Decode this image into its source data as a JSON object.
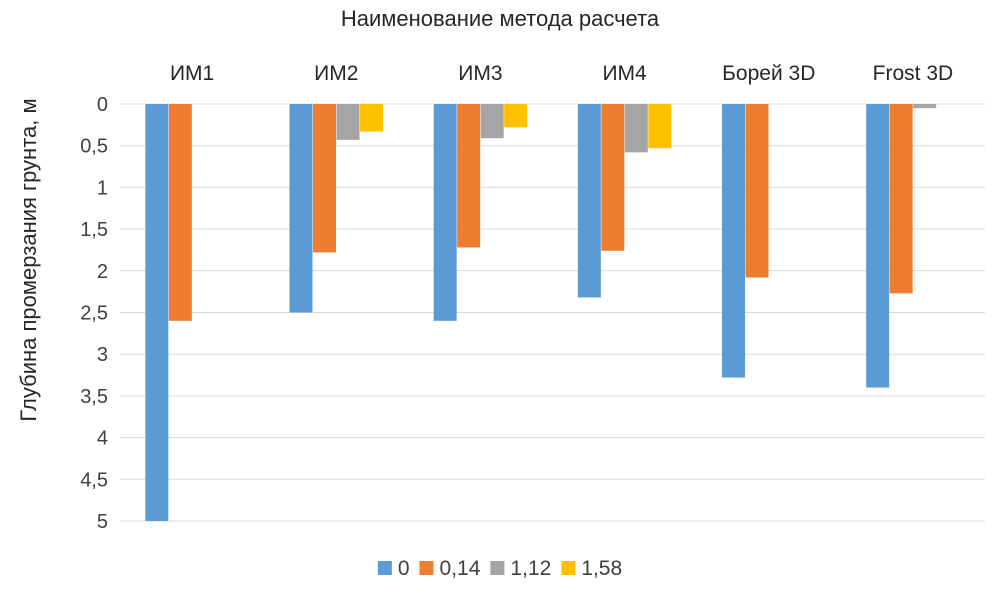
{
  "chart_data": {
    "type": "bar",
    "title": "Наименование метода расчета",
    "xlabel": "",
    "ylabel": "Глубина промерзания грунта, м",
    "categories": [
      "ИМ1",
      "ИМ2",
      "ИМ3",
      "ИМ4",
      "Борей 3D",
      "Frost 3D"
    ],
    "series": [
      {
        "name": "0",
        "color": "#5B9BD5",
        "values": [
          5.0,
          2.5,
          2.6,
          2.32,
          3.28,
          3.4
        ]
      },
      {
        "name": "0,14",
        "color": "#ED7D31",
        "values": [
          2.6,
          1.78,
          1.72,
          1.76,
          2.08,
          2.27
        ]
      },
      {
        "name": "1,12",
        "color": "#A5A5A5",
        "values": [
          null,
          0.43,
          0.41,
          0.58,
          null,
          0.05
        ]
      },
      {
        "name": "1,58",
        "color": "#FFC000",
        "values": [
          null,
          0.33,
          0.28,
          0.53,
          null,
          null
        ]
      }
    ],
    "yticks": [
      "0",
      "0,5",
      "1",
      "1,5",
      "2",
      "2,5",
      "3",
      "3,5",
      "4",
      "4,5",
      "5"
    ],
    "ylim": [
      0,
      5
    ],
    "y_inverted": true,
    "category_axis_position": "top",
    "grid": true,
    "legend_position": "bottom"
  }
}
